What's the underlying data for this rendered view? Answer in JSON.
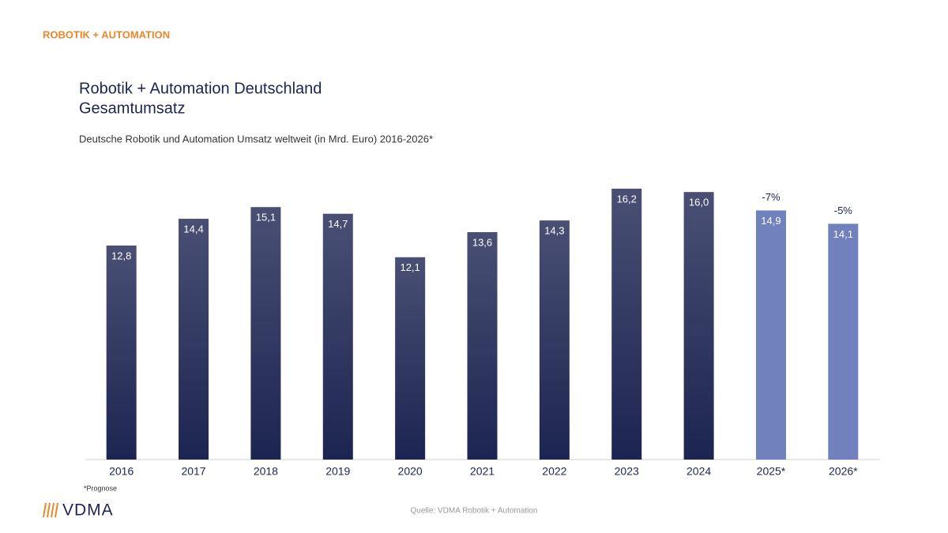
{
  "header": "ROBOTIK + AUTOMATION",
  "chart_data": {
    "type": "bar",
    "title": [
      "Robotik + Automation Deutschland",
      "Gesamtumsatz"
    ],
    "subtitle": "Deutsche Robotik und Automation Umsatz weltweit (in Mrd. Euro) 2016-2026*",
    "categories": [
      "2016",
      "2017",
      "2018",
      "2019",
      "2020",
      "2021",
      "2022",
      "2023",
      "2024",
      "2025*",
      "2026*"
    ],
    "values": [
      12.8,
      14.4,
      15.1,
      14.7,
      12.1,
      13.6,
      14.3,
      16.2,
      16.0,
      14.9,
      14.1
    ],
    "value_labels": [
      "12,8",
      "14,4",
      "15,1",
      "14,7",
      "12,1",
      "13,6",
      "14,3",
      "16,2",
      "16,0",
      "14,9",
      "14,1"
    ],
    "change_labels": [
      null,
      null,
      null,
      null,
      null,
      null,
      null,
      null,
      null,
      "-7%",
      "-5%"
    ],
    "colors": [
      "#1c2451",
      "#1c2451",
      "#1c2451",
      "#1c2451",
      "#1c2451",
      "#1c2451",
      "#1c2451",
      "#1c2451",
      "#1c2451",
      "#7081be",
      "#7081be"
    ],
    "bar_gradient": [
      true,
      true,
      true,
      true,
      true,
      true,
      true,
      true,
      true,
      false,
      false
    ],
    "ylim": [
      0,
      17
    ]
  },
  "footnote": "*Prognose",
  "logo": "VDMA",
  "source": "Quelle: VDMA Robotik + Automation"
}
